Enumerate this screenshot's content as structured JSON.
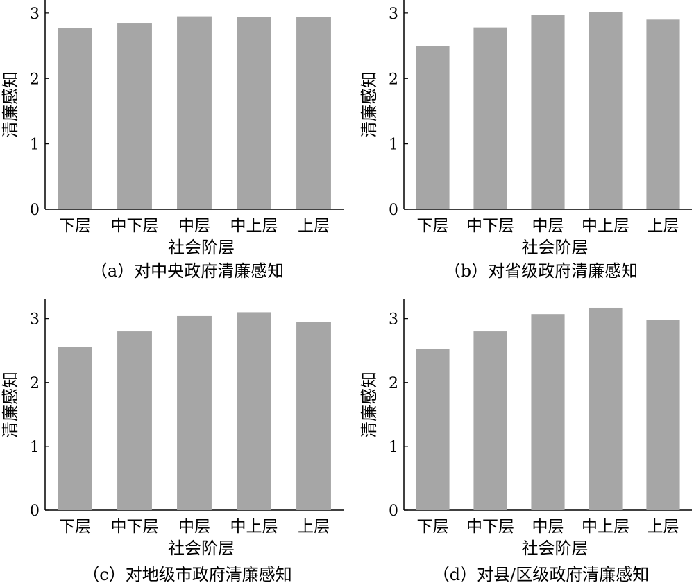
{
  "chart_data": [
    {
      "type": "bar",
      "caption": "（a）对中央政府清廉感知",
      "xlabel": "社会阶层",
      "ylabel": "清廉感知",
      "categories": [
        "下层",
        "中下层",
        "中层",
        "中上层",
        "上层"
      ],
      "values": [
        2.77,
        2.85,
        2.95,
        2.94,
        2.94
      ],
      "ylim": [
        0,
        3.2
      ],
      "yticks": [
        "0",
        "1",
        "2",
        "3"
      ],
      "bar_color": "#a6a6a6",
      "grid": false
    },
    {
      "type": "bar",
      "caption": "（b）对省级政府清廉感知",
      "xlabel": "社会阶层",
      "ylabel": "清廉感知",
      "categories": [
        "下层",
        "中下层",
        "中层",
        "中上层",
        "上层"
      ],
      "values": [
        2.49,
        2.78,
        2.97,
        3.01,
        2.9
      ],
      "ylim": [
        0,
        3.2
      ],
      "yticks": [
        "0",
        "1",
        "2",
        "3"
      ],
      "bar_color": "#a6a6a6",
      "grid": false
    },
    {
      "type": "bar",
      "caption": "（c）对地级市政府清廉感知",
      "xlabel": "社会阶层",
      "ylabel": "清廉感知",
      "categories": [
        "下层",
        "中下层",
        "中层",
        "中上层",
        "上层"
      ],
      "values": [
        2.56,
        2.8,
        3.04,
        3.1,
        2.95
      ],
      "ylim": [
        0,
        3.3
      ],
      "yticks": [
        "0",
        "1",
        "2",
        "3"
      ],
      "bar_color": "#a6a6a6",
      "grid": false
    },
    {
      "type": "bar",
      "caption": "（d）对县/区级政府清廉感知",
      "xlabel": "社会阶层",
      "ylabel": "清廉感知",
      "categories": [
        "下层",
        "中下层",
        "中层",
        "中上层",
        "上层"
      ],
      "values": [
        2.52,
        2.8,
        3.07,
        3.17,
        2.98
      ],
      "ylim": [
        0,
        3.3
      ],
      "yticks": [
        "0",
        "1",
        "2",
        "3"
      ],
      "bar_color": "#a6a6a6",
      "grid": false
    }
  ]
}
